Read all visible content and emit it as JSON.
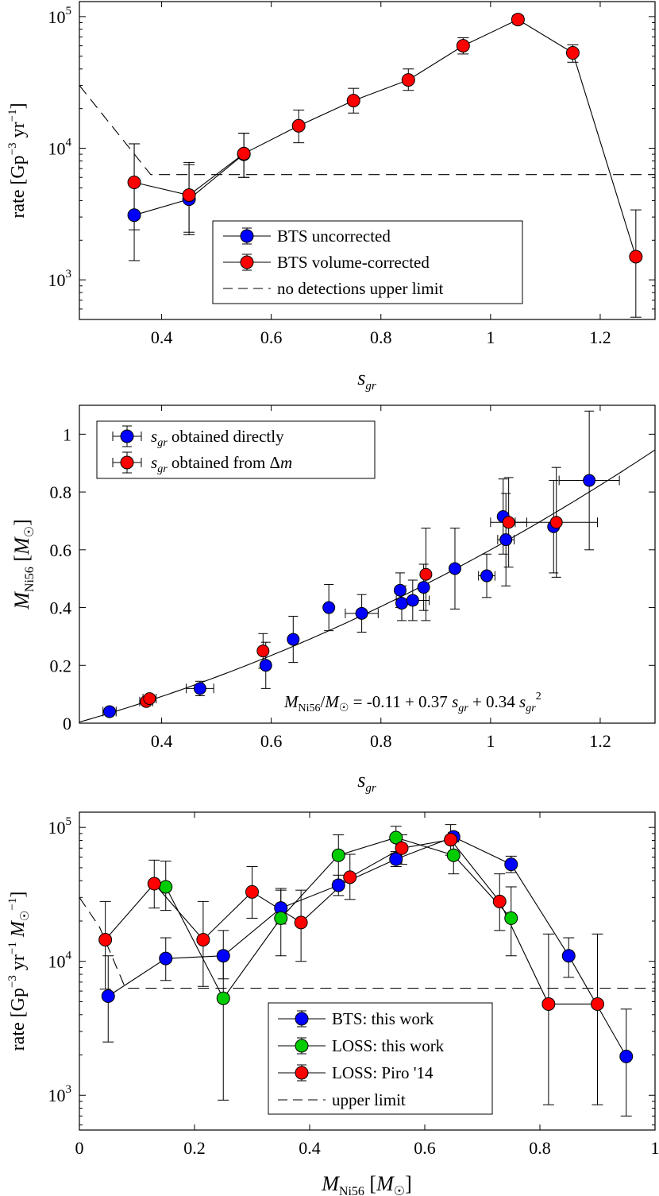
{
  "figure": {
    "panels": [
      {
        "id": "top",
        "xlabel_main": "s",
        "xlabel_sub": "gr",
        "ylabel": "rate [Gp⁻³ yr⁻¹]",
        "legend": [
          "BTS uncorrected",
          "BTS volume-corrected",
          "no detections upper limit"
        ]
      },
      {
        "id": "middle",
        "xlabel_main": "s",
        "xlabel_sub": "gr",
        "ylabel": "M_Ni56 [M☉]",
        "legend": [
          "s_gr obtained directly",
          "s_gr obtained from Δm"
        ],
        "annotation": "M_Ni56/M☉ = -0.11 + 0.37 s_gr + 0.34 s_gr²"
      },
      {
        "id": "bottom",
        "xlabel": "M_Ni56 [M☉]",
        "ylabel": "rate [Gp⁻³ yr⁻¹ M☉⁻¹]",
        "legend": [
          "BTS: this work",
          "LOSS: this work",
          "LOSS: Piro '14",
          "upper limit"
        ]
      }
    ]
  },
  "chart_data": [
    {
      "type": "line",
      "title": "",
      "xlabel": "s_gr",
      "ylabel": "rate [Gp^-3 yr^-1]",
      "xlim": [
        0.25,
        1.3
      ],
      "ylim": [
        500,
        130000
      ],
      "yscale": "log",
      "xticks": [
        0.4,
        0.6,
        0.8,
        1.0,
        1.2
      ],
      "xtick_labels": [
        "0.4",
        "0.6",
        "0.8",
        "1",
        "1.2"
      ],
      "yticks": [
        1000,
        10000,
        100000
      ],
      "color_blue": "#0000ff",
      "color_red": "#ff0000",
      "series": [
        {
          "name": "BTS uncorrected",
          "color": "#0000ff",
          "x": [
            0.35,
            0.45,
            0.55
          ],
          "y": [
            3100,
            4100,
            9000
          ],
          "lo": [
            1400,
            2200,
            6000
          ],
          "hi": [
            10800,
            7800,
            13000
          ]
        },
        {
          "name": "BTS volume-corrected",
          "color": "#ff0000",
          "x": [
            0.35,
            0.45,
            0.55,
            0.65,
            0.75,
            0.85,
            0.95,
            1.05,
            1.15,
            1.265
          ],
          "y": [
            5500,
            4400,
            9100,
            14800,
            23000,
            33000,
            60000,
            95000,
            53000,
            1500
          ],
          "lo": [
            2400,
            2300,
            6000,
            11000,
            18500,
            27500,
            52000,
            88000,
            45000,
            520
          ],
          "hi": [
            10800,
            7500,
            13000,
            19500,
            28500,
            40000,
            69000,
            102000,
            61000,
            3400
          ]
        },
        {
          "name": "no detections upper limit",
          "style": "dashed",
          "x": [
            0.25,
            0.38,
            0.5,
            1.3
          ],
          "y": [
            30000,
            6300,
            6300,
            6300
          ]
        }
      ]
    },
    {
      "type": "scatter",
      "title": "",
      "xlabel": "s_gr",
      "ylabel": "M_Ni56 [M_sun]",
      "xlim": [
        0.25,
        1.3
      ],
      "ylim": [
        0,
        1.1
      ],
      "xticks": [
        0.4,
        0.6,
        0.8,
        1.0,
        1.2
      ],
      "xtick_labels": [
        "0.4",
        "0.6",
        "0.8",
        "1",
        "1.2"
      ],
      "yticks": [
        0,
        0.2,
        0.4,
        0.6,
        0.8,
        1.0
      ],
      "ytick_labels": [
        "0",
        "0.2",
        "0.4",
        "0.6",
        "0.8",
        "1"
      ],
      "fit": {
        "c0": -0.11,
        "c1": 0.37,
        "c2": 0.34
      },
      "series": [
        {
          "name": "s_gr obtained directly",
          "color": "#0000ff",
          "points": [
            [
              0.305,
              0.04,
              0.012,
              0.01
            ],
            [
              0.47,
              0.12,
              0.025,
              0.025
            ],
            [
              0.59,
              0.2,
              0.0,
              0.08
            ],
            [
              0.64,
              0.29,
              0.0,
              0.08
            ],
            [
              0.705,
              0.4,
              0.0,
              0.08
            ],
            [
              0.765,
              0.38,
              0.03,
              0.065
            ],
            [
              0.835,
              0.46,
              0.0,
              0.06
            ],
            [
              0.838,
              0.415,
              0.0,
              0.06
            ],
            [
              0.858,
              0.425,
              0.03,
              0.07
            ],
            [
              0.878,
              0.47,
              0.0,
              0.08
            ],
            [
              0.935,
              0.535,
              0.0,
              0.14
            ],
            [
              0.993,
              0.51,
              0.015,
              0.075
            ],
            [
              1.023,
              0.715,
              0.0,
              0.13
            ],
            [
              1.028,
              0.635,
              0.015,
              0.16
            ],
            [
              1.115,
              0.68,
              0.0,
              0.16
            ],
            [
              1.18,
              0.84,
              0.055,
              0.24
            ]
          ]
        },
        {
          "name": "s_gr obtained from Δm",
          "color": "#ff0000",
          "points": [
            [
              0.372,
              0.075,
              0.012,
              0.01
            ],
            [
              0.378,
              0.085,
              0.012,
              0.01
            ],
            [
              0.585,
              0.25,
              0.0,
              0.06
            ],
            [
              0.882,
              0.515,
              0.0,
              0.16
            ],
            [
              1.033,
              0.695,
              0.033,
              0.155
            ],
            [
              1.12,
              0.695,
              0.075,
              0.19
            ]
          ]
        }
      ],
      "annotation": "M_Ni56/M_sun = -0.11 + 0.37 s_gr + 0.34 s_gr^2"
    },
    {
      "type": "line",
      "title": "",
      "xlabel": "M_Ni56 [M_sun]",
      "ylabel": "rate [Gp^-3 yr^-1 M_sun^-1]",
      "xlim": [
        0,
        1
      ],
      "ylim": [
        550,
        130000
      ],
      "yscale": "log",
      "xticks": [
        0,
        0.2,
        0.4,
        0.6,
        0.8,
        1.0
      ],
      "xtick_labels": [
        "0",
        "0.2",
        "0.4",
        "0.6",
        "0.8",
        "1"
      ],
      "yticks": [
        1000,
        10000,
        100000
      ],
      "color_green": "#00cc00",
      "series": [
        {
          "name": "BTS: this work",
          "color": "#0000ff",
          "x": [
            0.05,
            0.15,
            0.25,
            0.35,
            0.45,
            0.55,
            0.65,
            0.75,
            0.85,
            0.95
          ],
          "y": [
            5500,
            10500,
            11000,
            25000,
            37000,
            58000,
            85000,
            53000,
            11000,
            1950
          ],
          "lo": [
            2500,
            7200,
            7400,
            19000,
            31000,
            51000,
            78000,
            46000,
            7600,
            700
          ],
          "hi": [
            11000,
            15000,
            17000,
            34000,
            44000,
            66000,
            92000,
            61000,
            15000,
            4400
          ]
        },
        {
          "name": "LOSS: this work",
          "color": "#00cc00",
          "x": [
            0.15,
            0.25,
            0.35,
            0.45,
            0.55,
            0.65,
            0.75
          ],
          "y": [
            36000,
            5300,
            21000,
            62000,
            84000,
            62000,
            21000
          ],
          "lo": [
            24000,
            920,
            11000,
            40000,
            64000,
            45000,
            11000
          ],
          "hi": [
            56000,
            11000,
            35000,
            88000,
            102000,
            82000,
            36000
          ]
        },
        {
          "name": "LOSS: Piro '14",
          "color": "#ff0000",
          "x": [
            0.045,
            0.13,
            0.215,
            0.3,
            0.385,
            0.47,
            0.56,
            0.645,
            0.73,
            0.815,
            0.9
          ],
          "y": [
            14500,
            38000,
            14500,
            33000,
            19500,
            42500,
            70000,
            81000,
            28000,
            4800,
            4800
          ],
          "lo": [
            6200,
            25000,
            6500,
            21000,
            10000,
            29000,
            53000,
            62000,
            17000,
            850,
            850
          ],
          "hi": [
            28000,
            57000,
            28000,
            51000,
            34000,
            63000,
            88000,
            105000,
            45000,
            16000,
            16000
          ]
        },
        {
          "name": "upper limit",
          "style": "dashed",
          "x": [
            0,
            0.035,
            0.08,
            1.0
          ],
          "y": [
            30000,
            18000,
            6300,
            6300
          ]
        }
      ]
    }
  ]
}
